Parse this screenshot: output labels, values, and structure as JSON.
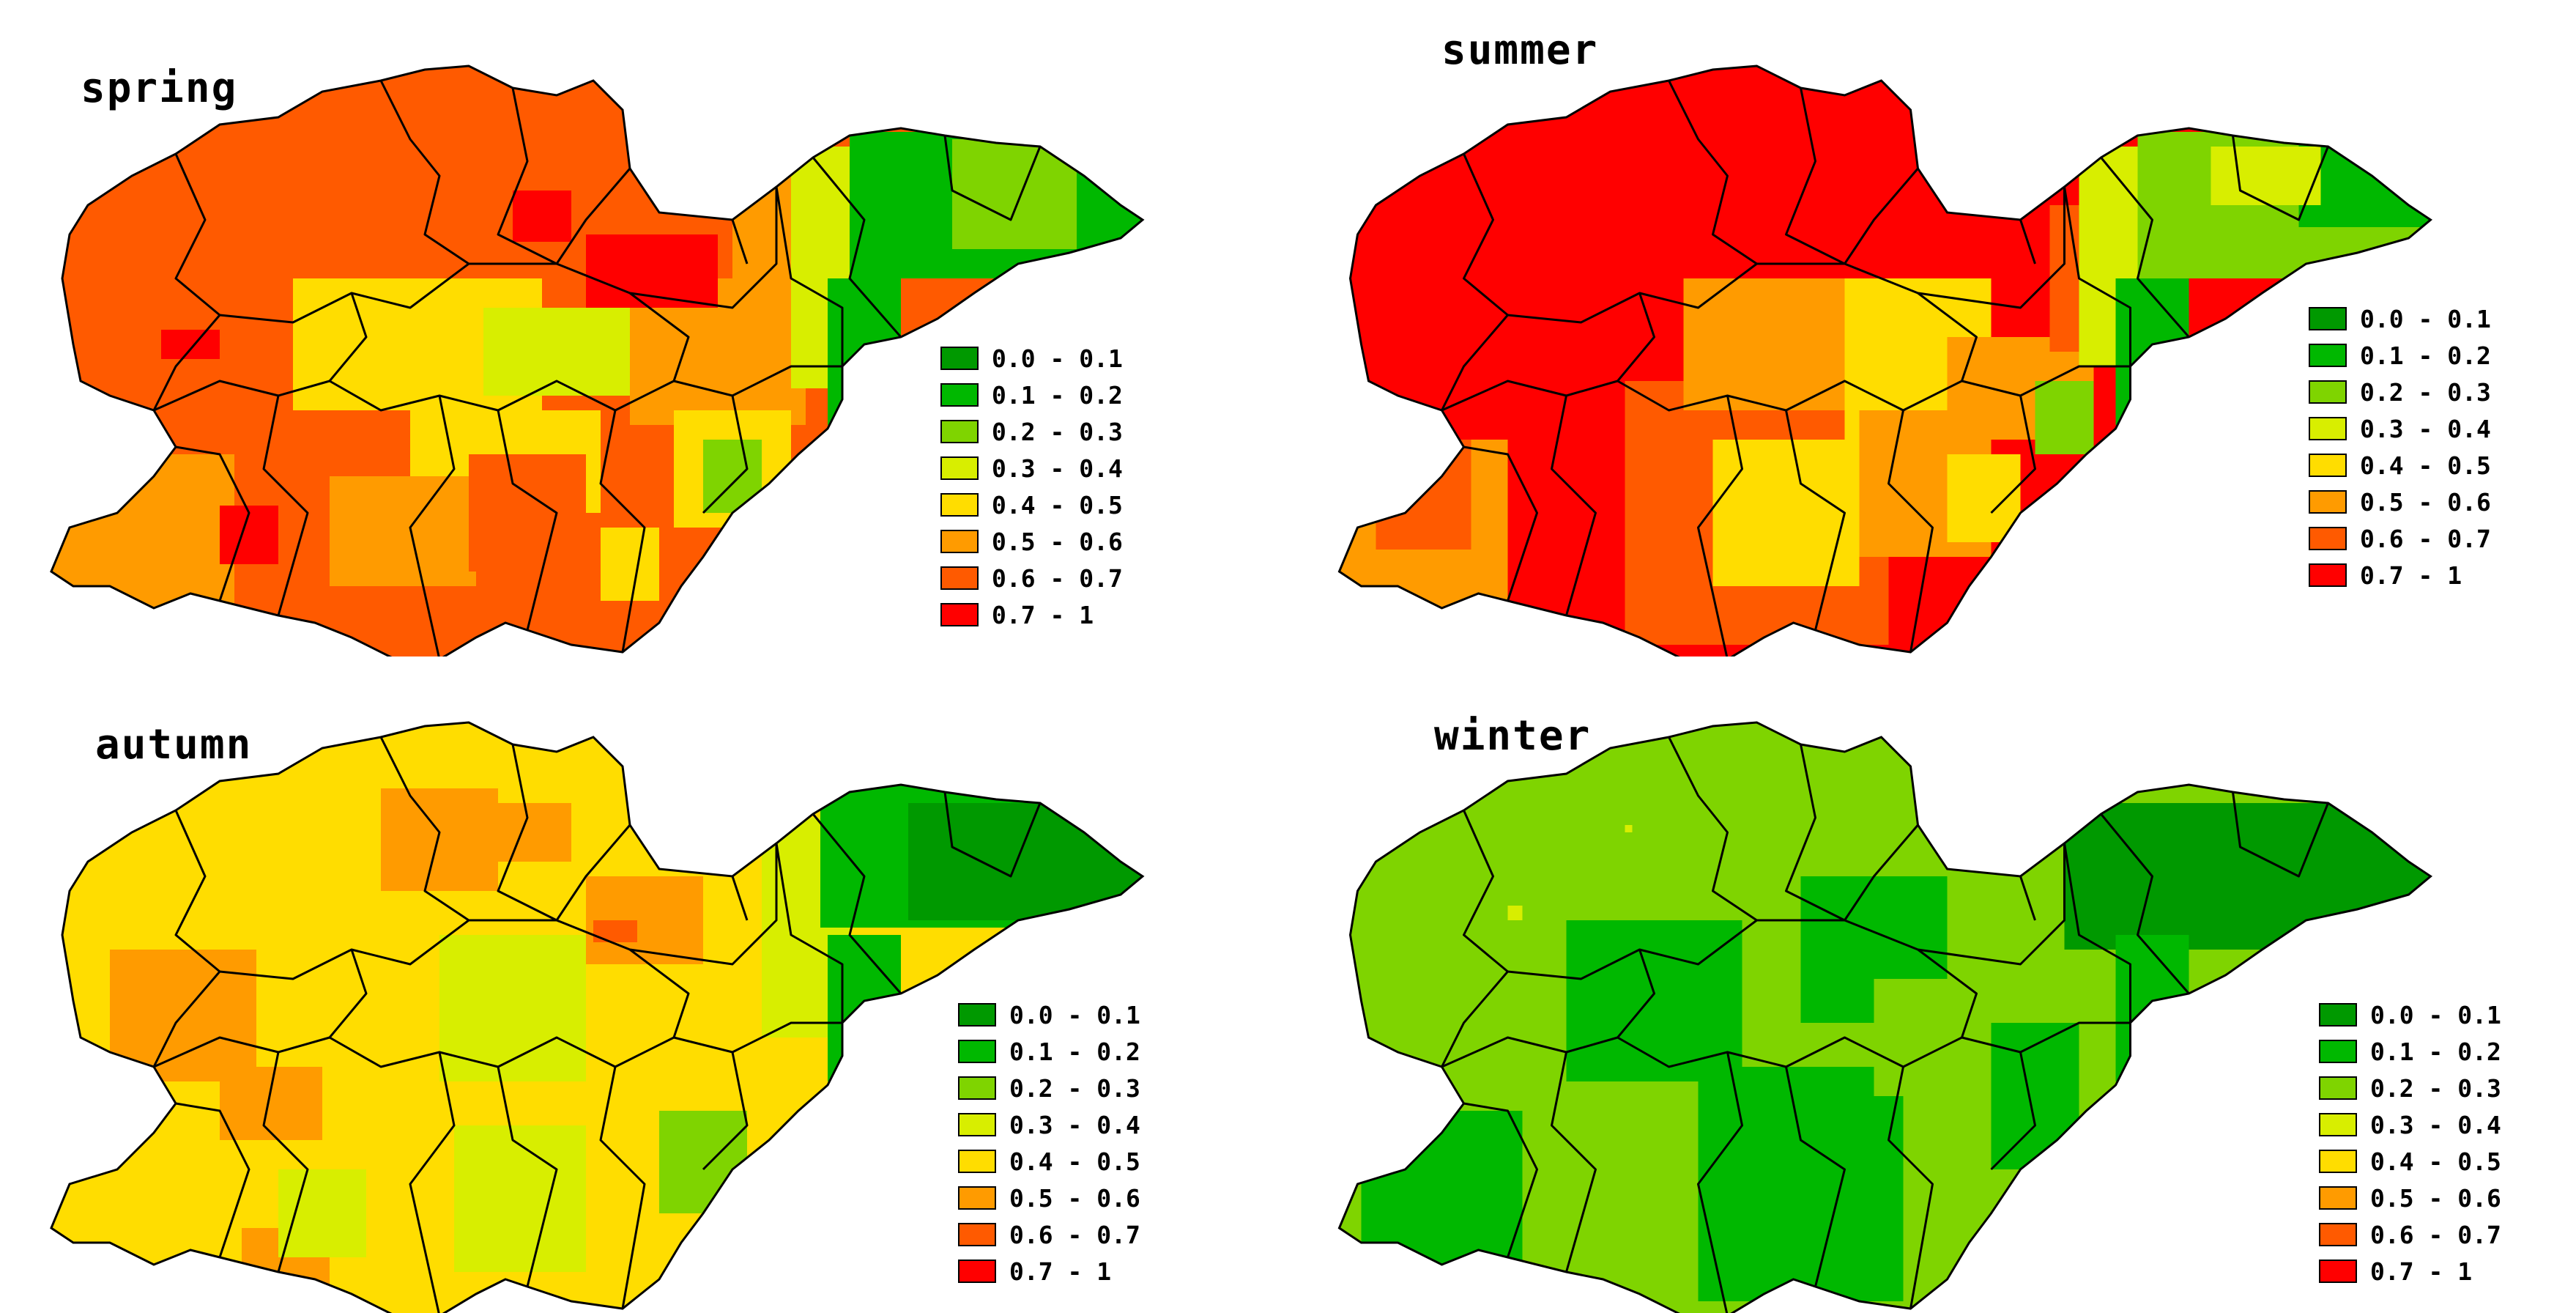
{
  "legend_classes": [
    {
      "label": "0.0 - 0.1",
      "color": "#009900"
    },
    {
      "label": "0.1 - 0.2",
      "color": "#00B800"
    },
    {
      "label": "0.2 - 0.3",
      "color": "#7FD400"
    },
    {
      "label": "0.3 - 0.4",
      "color": "#D8EE00"
    },
    {
      "label": "0.4 - 0.5",
      "color": "#FFDD00"
    },
    {
      "label": "0.5 - 0.6",
      "color": "#FF9B00"
    },
    {
      "label": "0.6 - 0.7",
      "color": "#FF5A00"
    },
    {
      "label": "0.7 - 1",
      "color": "#FF0000"
    }
  ],
  "panels": [
    {
      "id": "spring",
      "title": "spring",
      "dominant_classes": [
        "0.6 - 0.7",
        "0.5 - 0.6",
        "0.4 - 0.5"
      ],
      "east_classes": [
        "0.1 - 0.2",
        "0.2 - 0.3"
      ],
      "north_central_classes": [
        "0.7 - 1"
      ]
    },
    {
      "id": "summer",
      "title": "summer",
      "dominant_classes": [
        "0.7 - 1",
        "0.6 - 0.7",
        "0.5 - 0.6"
      ],
      "east_classes": [
        "0.1 - 0.2",
        "0.2 - 0.3",
        "0.3 - 0.4"
      ],
      "north_central_classes": [
        "0.7 - 1"
      ]
    },
    {
      "id": "autumn",
      "title": "autumn",
      "dominant_classes": [
        "0.4 - 0.5",
        "0.3 - 0.4",
        "0.5 - 0.6"
      ],
      "east_classes": [
        "0.0 - 0.1",
        "0.1 - 0.2"
      ],
      "north_central_classes": [
        "0.5 - 0.6"
      ]
    },
    {
      "id": "winter",
      "title": "winter",
      "dominant_classes": [
        "0.1 - 0.2",
        "0.2 - 0.3"
      ],
      "east_classes": [
        "0.0 - 0.1"
      ],
      "north_central_classes": [
        "0.1 - 0.2"
      ]
    }
  ]
}
